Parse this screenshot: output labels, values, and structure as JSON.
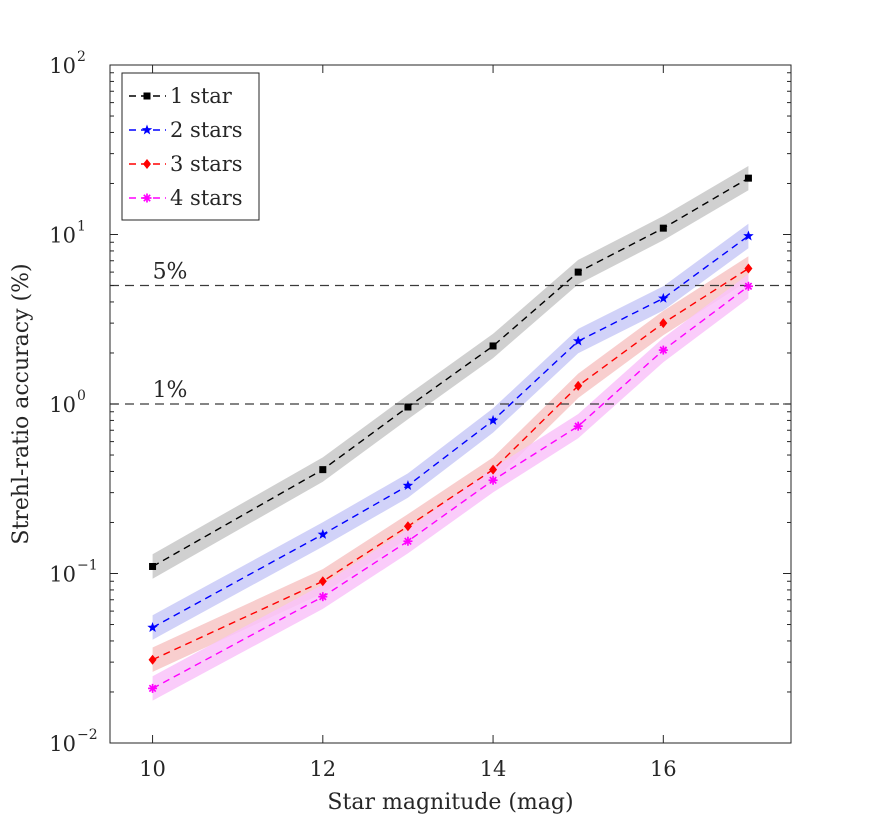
{
  "chart_data": {
    "type": "line",
    "title": "",
    "xlabel": "Star magnitude (mag)",
    "ylabel": "Strehl-ratio accuracy (%)",
    "xscale": "linear",
    "yscale": "log",
    "xlim": [
      9.5,
      17.5
    ],
    "ylim": [
      0.01,
      100
    ],
    "xticks": [
      10,
      12,
      14,
      16
    ],
    "xtick_labels": [
      "10",
      "12",
      "14",
      "16"
    ],
    "yticks": [
      0.01,
      0.1,
      1,
      10,
      100
    ],
    "ytick_labels": [
      {
        "base": "10",
        "exp": "−2"
      },
      {
        "base": "10",
        "exp": "−1"
      },
      {
        "base": "10",
        "exp": "0"
      },
      {
        "base": "10",
        "exp": "1"
      },
      {
        "base": "10",
        "exp": "2"
      }
    ],
    "x": [
      10,
      12,
      13,
      14,
      15,
      16,
      17
    ],
    "reference_lines": [
      {
        "y": 5,
        "label": "5%"
      },
      {
        "y": 1,
        "label": "1%"
      }
    ],
    "legend_position": "top-left",
    "band_relative_halfwidth": 0.18,
    "series": [
      {
        "name": "1 star",
        "color": "#000000",
        "marker": "square",
        "band_color": "#c8c8c8",
        "values": [
          0.11,
          0.41,
          0.96,
          2.2,
          6.0,
          10.9,
          21.5
        ]
      },
      {
        "name": "2 stars",
        "color": "#0000ff",
        "marker": "star",
        "band_color": "#c9caf7",
        "values": [
          0.048,
          0.17,
          0.33,
          0.8,
          2.35,
          4.2,
          9.8
        ]
      },
      {
        "name": "3 stars",
        "color": "#ff0000",
        "marker": "diamond",
        "band_color": "#f7c6c6",
        "values": [
          0.031,
          0.09,
          0.19,
          0.41,
          1.28,
          3.0,
          6.3
        ]
      },
      {
        "name": "4 stars",
        "color": "#ff00ff",
        "marker": "asterisk",
        "band_color": "#f9c3f9",
        "values": [
          0.021,
          0.073,
          0.155,
          0.355,
          0.74,
          2.08,
          4.95
        ]
      }
    ]
  }
}
